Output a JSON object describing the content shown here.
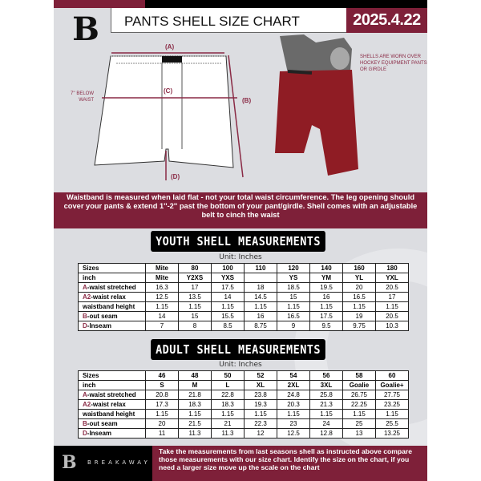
{
  "header": {
    "logo": "B",
    "title": "PANTS SHELL SIZE CHART",
    "date": "2025.4.22"
  },
  "diagram": {
    "label_a": "(A)",
    "label_b": "(B)",
    "label_c": "(C)",
    "label_d": "(D)",
    "below_waist": "7'' BELOW WAIST",
    "note": "SHELLS ARE WORN OVER HOCKEY EQUIPMENT PANTS OR GIRDLE"
  },
  "banner": "Waistband is measured when laid flat - not your total waist circumference. The leg opening should cover your pants & extend 1''-2'' past the bottom of your pant/girdle. Shell comes with an adjustable belt to cinch the waist",
  "youth": {
    "title": "YOUTH SHELL MEASUREMENTS",
    "unit": "Unit: Inches",
    "rows": [
      {
        "prefix": "",
        "label": "Sizes",
        "values": [
          "Mite",
          "80",
          "100",
          "110",
          "120",
          "140",
          "160",
          "180"
        ]
      },
      {
        "prefix": "",
        "label": "inch",
        "values": [
          "Mite",
          "Y2XS",
          "YXS",
          "",
          "YS",
          "YM",
          "YL",
          "YXL"
        ]
      },
      {
        "prefix": "A",
        "label": "-waist stretched",
        "values": [
          "16.3",
          "17",
          "17.5",
          "18",
          "18.5",
          "19.5",
          "20",
          "20.5"
        ]
      },
      {
        "prefix": "A2",
        "label": "-waist relax",
        "values": [
          "12.5",
          "13.5",
          "14",
          "14.5",
          "15",
          "16",
          "16.5",
          "17"
        ]
      },
      {
        "prefix": "",
        "label": "waistband height",
        "values": [
          "1.15",
          "1.15",
          "1.15",
          "1.15",
          "1.15",
          "1.15",
          "1.15",
          "1.15"
        ]
      },
      {
        "prefix": "B",
        "label": "-out seam",
        "values": [
          "14",
          "15",
          "15.5",
          "16",
          "16.5",
          "17.5",
          "19",
          "20.5"
        ]
      },
      {
        "prefix": "D",
        "label": "-Inseam",
        "values": [
          "7",
          "8",
          "8.5",
          "8.75",
          "9",
          "9.5",
          "9.75",
          "10.3"
        ]
      }
    ]
  },
  "adult": {
    "title": "ADULT SHELL MEASUREMENTS",
    "unit": "Unit: Inches",
    "rows": [
      {
        "prefix": "",
        "label": "Sizes",
        "values": [
          "46",
          "48",
          "50",
          "52",
          "54",
          "56",
          "58",
          "60"
        ]
      },
      {
        "prefix": "",
        "label": "inch",
        "values": [
          "S",
          "M",
          "L",
          "XL",
          "2XL",
          "3XL",
          "Goalie",
          "Goalie+"
        ]
      },
      {
        "prefix": "A",
        "label": "-waist stretched",
        "values": [
          "20.8",
          "21.8",
          "22.8",
          "23.8",
          "24.8",
          "25.8",
          "26.75",
          "27.75"
        ]
      },
      {
        "prefix": "A2",
        "label": "-waist relax",
        "values": [
          "17.3",
          "18.3",
          "18.3",
          "19.3",
          "20.3",
          "21.3",
          "22.25",
          "23.25"
        ]
      },
      {
        "prefix": "",
        "label": "waistband height",
        "values": [
          "1.15",
          "1.15",
          "1.15",
          "1.15",
          "1.15",
          "1.15",
          "1.15",
          "1.15"
        ]
      },
      {
        "prefix": "B",
        "label": "-out seam",
        "values": [
          "20",
          "21.5",
          "21",
          "22.3",
          "23",
          "24",
          "25",
          "25.5"
        ]
      },
      {
        "prefix": "D",
        "label": "-Inseam",
        "values": [
          "11",
          "11.3",
          "11.3",
          "12",
          "12.5",
          "12.8",
          "13",
          "13.25"
        ]
      }
    ]
  },
  "footer": {
    "brand": "BREAKAWAY",
    "logo": "B",
    "text": "Take the measurements from last seasons shell as instructed above compare those measurements  with our size chart. Identify the size on the chart, if you need a larger size move up the scale on the chart"
  },
  "colors": {
    "accent": "#7e2039",
    "background": "#dcdde1"
  }
}
